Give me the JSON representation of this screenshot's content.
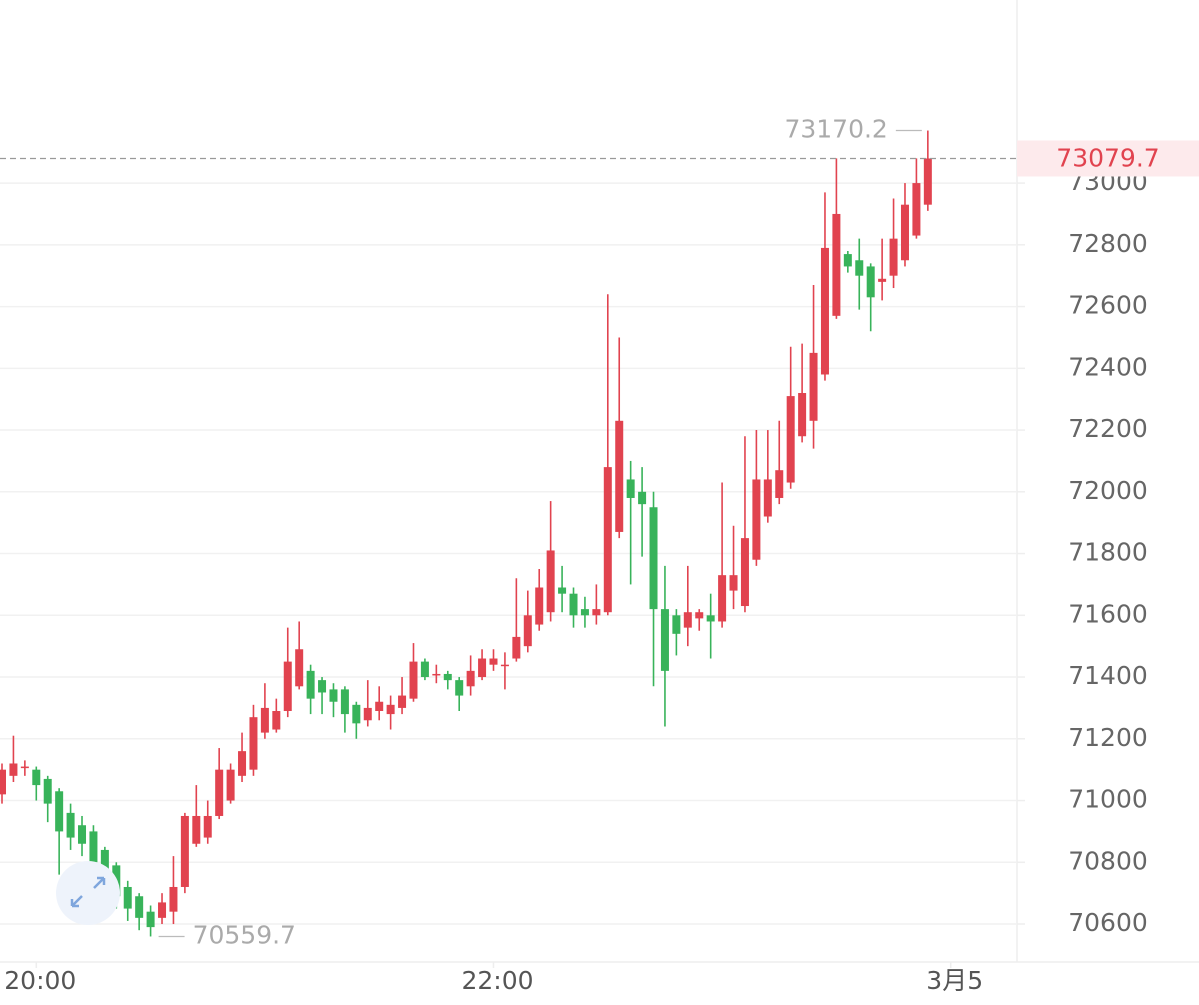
{
  "chart_data": {
    "type": "candlestick",
    "open": [
      71020,
      71080,
      71105,
      71100,
      71070,
      71030,
      70960,
      70920,
      70900,
      70840,
      70790,
      70720,
      70690,
      70640,
      70620,
      70640,
      70720,
      70860,
      70880,
      70950,
      71000,
      71080,
      71100,
      71220,
      71230,
      71290,
      71370,
      71420,
      71390,
      71360,
      71360,
      71310,
      71260,
      71290,
      71280,
      71300,
      71330,
      71450,
      71410,
      71410,
      71390,
      71370,
      71400,
      71440,
      71440,
      71460,
      71500,
      71570,
      71610,
      71690,
      71670,
      71620,
      71600,
      71610,
      71870,
      72040,
      72000,
      71950,
      71620,
      71600,
      71560,
      71590,
      71600,
      71580,
      71680,
      71630,
      71780,
      71920,
      71980,
      72030,
      72180,
      72230,
      72380,
      72570,
      72770,
      72750,
      72730,
      72680,
      72700,
      72750,
      72830,
      72930
    ],
    "high": [
      71120,
      71210,
      71130,
      71110,
      71080,
      71040,
      70990,
      70950,
      70920,
      70850,
      70800,
      70740,
      70700,
      70660,
      70700,
      70820,
      70960,
      71050,
      71000,
      71170,
      71120,
      71220,
      71310,
      71380,
      71330,
      71560,
      71580,
      71440,
      71400,
      71380,
      71370,
      71320,
      71390,
      71370,
      71340,
      71400,
      71510,
      71460,
      71440,
      71420,
      71400,
      71470,
      71490,
      71490,
      71480,
      71720,
      71680,
      71750,
      71970,
      71760,
      71690,
      71660,
      71700,
      72640,
      72500,
      72100,
      72080,
      72000,
      71760,
      71620,
      71760,
      71620,
      71670,
      72030,
      71890,
      72180,
      72200,
      72200,
      72230,
      72470,
      72480,
      72670,
      72970,
      73080,
      72780,
      72820,
      72740,
      72820,
      72950,
      73000,
      73080,
      73170.2
    ],
    "low": [
      70990,
      71060,
      71080,
      71000,
      70930,
      70760,
      70840,
      70820,
      70770,
      70690,
      70650,
      70610,
      70580,
      70559.7,
      70600,
      70600,
      70700,
      70850,
      70860,
      70940,
      70990,
      71060,
      71080,
      71200,
      71220,
      71270,
      71360,
      71280,
      71280,
      71270,
      71220,
      71200,
      71240,
      71260,
      71230,
      71280,
      71320,
      71390,
      71380,
      71360,
      71290,
      71340,
      71390,
      71420,
      71360,
      71450,
      71480,
      71550,
      71580,
      71610,
      71560,
      71560,
      71570,
      71600,
      71850,
      71700,
      71790,
      71370,
      71240,
      71470,
      71500,
      71550,
      71460,
      71560,
      71620,
      71610,
      71760,
      71900,
      71960,
      72010,
      72160,
      72140,
      72360,
      72560,
      72710,
      72590,
      72520,
      72620,
      72660,
      72730,
      72820,
      72910
    ],
    "close": [
      71100,
      71120,
      71110,
      71050,
      70990,
      70900,
      70880,
      70860,
      70800,
      70740,
      70690,
      70650,
      70620,
      70590,
      70670,
      70720,
      70950,
      70950,
      70950,
      71100,
      71100,
      71160,
      71270,
      71300,
      71290,
      71450,
      71490,
      71330,
      71350,
      71320,
      71280,
      71250,
      71300,
      71320,
      71310,
      71340,
      71450,
      71400,
      71410,
      71390,
      71340,
      71420,
      71460,
      71460,
      71440,
      71530,
      71600,
      71690,
      71810,
      71670,
      71600,
      71600,
      71620,
      72080,
      72230,
      71980,
      71960,
      71620,
      71420,
      71540,
      71610,
      71610,
      71580,
      71730,
      71730,
      71850,
      72040,
      72040,
      72070,
      72310,
      72320,
      72450,
      72790,
      72900,
      72730,
      72700,
      72630,
      72690,
      72820,
      72930,
      73000,
      73079.7
    ],
    "up_color": "#e1434f",
    "down_color": "#38b35a",
    "xlim": [
      -0.175,
      88.8
    ],
    "xticks": [
      {
        "value": 3,
        "label": "20:00"
      },
      {
        "value": 43,
        "label": "22:00"
      },
      {
        "value": 83,
        "label": "3月5"
      }
    ],
    "ylim": [
      70477,
      73593
    ],
    "yticks": [
      70600,
      70800,
      71000,
      71200,
      71400,
      71600,
      71800,
      72000,
      72200,
      72400,
      72600,
      72800,
      73000
    ],
    "grid": true
  }
}
